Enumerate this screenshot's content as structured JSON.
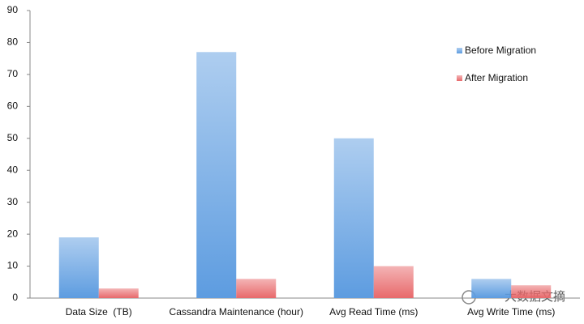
{
  "chart_data": {
    "type": "bar",
    "categories": [
      "Data Size  (TB)",
      "Cassandra Maintenance (hour)",
      "Avg Read Time (ms)",
      "Avg Write Time (ms)"
    ],
    "series": [
      {
        "name": "Before Migration",
        "color": "#5d9ce0",
        "values": [
          19,
          77,
          50,
          6
        ]
      },
      {
        "name": "After Migration",
        "color": "#e8696b",
        "values": [
          3,
          6,
          10,
          4
        ]
      }
    ],
    "ylim": [
      0,
      90
    ],
    "yticks": [
      0,
      10,
      20,
      30,
      40,
      50,
      60,
      70,
      80,
      90
    ],
    "grid": false,
    "legend": "right",
    "watermark": "大数据文摘"
  }
}
